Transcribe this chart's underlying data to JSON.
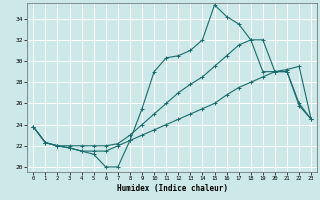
{
  "xlabel": "Humidex (Indice chaleur)",
  "bg_color": "#cce8e8",
  "grid_color": "#ffffff",
  "line_color": "#1a6b6b",
  "xlim": [
    -0.5,
    23.5
  ],
  "ylim": [
    19.5,
    35.5
  ],
  "xticks": [
    0,
    1,
    2,
    3,
    4,
    5,
    6,
    7,
    8,
    9,
    10,
    11,
    12,
    13,
    14,
    15,
    16,
    17,
    18,
    19,
    20,
    21,
    22,
    23
  ],
  "yticks": [
    20,
    22,
    24,
    26,
    28,
    30,
    32,
    34
  ],
  "line1_x": [
    0,
    1,
    2,
    3,
    4,
    5,
    6,
    7,
    8,
    9,
    10,
    11,
    12,
    13,
    14,
    15,
    16,
    17,
    18,
    19,
    20,
    21,
    22,
    23
  ],
  "line1_y": [
    23.8,
    22.3,
    22.0,
    21.8,
    21.5,
    21.2,
    20.0,
    20.0,
    22.5,
    25.5,
    29.0,
    30.3,
    30.5,
    31.0,
    32.0,
    35.3,
    34.2,
    33.5,
    32.0,
    29.0,
    29.0,
    29.0,
    25.8,
    24.5
  ],
  "line2_x": [
    0,
    1,
    2,
    3,
    4,
    5,
    6,
    7,
    8,
    9,
    10,
    11,
    12,
    13,
    14,
    15,
    16,
    17,
    18,
    19,
    20,
    21,
    22,
    23
  ],
  "line2_y": [
    23.8,
    22.3,
    22.0,
    22.0,
    22.0,
    22.0,
    22.0,
    22.2,
    23.0,
    24.0,
    25.0,
    26.0,
    27.0,
    27.8,
    28.5,
    29.5,
    30.5,
    31.5,
    32.0,
    32.0,
    29.0,
    29.0,
    26.0,
    24.5
  ],
  "line3_x": [
    0,
    1,
    2,
    3,
    4,
    5,
    6,
    7,
    8,
    9,
    10,
    11,
    12,
    13,
    14,
    15,
    16,
    17,
    18,
    19,
    20,
    21,
    22,
    23
  ],
  "line3_y": [
    23.8,
    22.3,
    22.0,
    21.8,
    21.5,
    21.5,
    21.5,
    22.0,
    22.5,
    23.0,
    23.5,
    24.0,
    24.5,
    25.0,
    25.5,
    26.0,
    26.8,
    27.5,
    28.0,
    28.5,
    29.0,
    29.2,
    29.5,
    24.5
  ]
}
